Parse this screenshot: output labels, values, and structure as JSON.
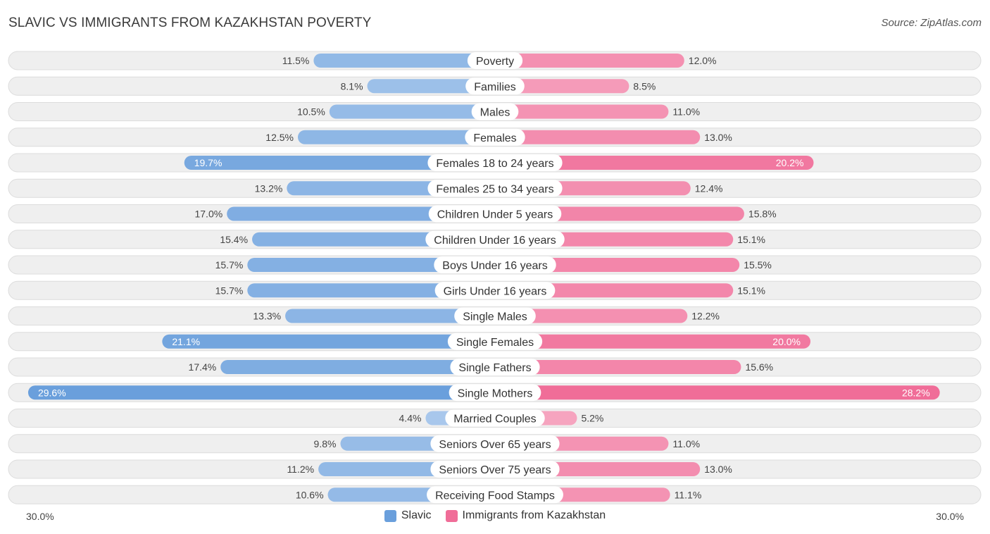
{
  "title": "SLAVIC VS IMMIGRANTS FROM KAZAKHSTAN POVERTY",
  "source": "Source: ZipAtlas.com",
  "colors": {
    "slavic_light": "#a9c8ec",
    "slavic_dark": "#6a9fdc",
    "kaz_light": "#f6a8c2",
    "kaz_dark": "#f06d98"
  },
  "chart_data": {
    "type": "bar",
    "orientation": "diverging-horizontal",
    "title": "SLAVIC VS IMMIGRANTS FROM KAZAKHSTAN POVERTY",
    "xlim": [
      -30.0,
      30.0
    ],
    "axis_left_label": "30.0%",
    "axis_right_label": "30.0%",
    "categories": [
      "Poverty",
      "Families",
      "Males",
      "Females",
      "Females 18 to 24 years",
      "Females 25 to 34 years",
      "Children Under 5 years",
      "Children Under 16 years",
      "Boys Under 16 years",
      "Girls Under 16 years",
      "Single Males",
      "Single Females",
      "Single Fathers",
      "Single Mothers",
      "Married Couples",
      "Seniors Over 65 years",
      "Seniors Over 75 years",
      "Receiving Food Stamps"
    ],
    "series": [
      {
        "name": "Slavic",
        "values": [
          11.5,
          8.1,
          10.5,
          12.5,
          19.7,
          13.2,
          17.0,
          15.4,
          15.7,
          15.7,
          13.3,
          21.1,
          17.4,
          29.6,
          4.4,
          9.8,
          11.2,
          10.6
        ],
        "labels": [
          "11.5%",
          "8.1%",
          "10.5%",
          "12.5%",
          "19.7%",
          "13.2%",
          "17.0%",
          "15.4%",
          "15.7%",
          "15.7%",
          "13.3%",
          "21.1%",
          "17.4%",
          "29.6%",
          "4.4%",
          "9.8%",
          "11.2%",
          "10.6%"
        ]
      },
      {
        "name": "Immigrants from Kazakhstan",
        "values": [
          12.0,
          8.5,
          11.0,
          13.0,
          20.2,
          12.4,
          15.8,
          15.1,
          15.5,
          15.1,
          12.2,
          20.0,
          15.6,
          28.2,
          5.2,
          11.0,
          13.0,
          11.1
        ],
        "labels": [
          "12.0%",
          "8.5%",
          "11.0%",
          "13.0%",
          "20.2%",
          "12.4%",
          "15.8%",
          "15.1%",
          "15.5%",
          "15.1%",
          "12.2%",
          "20.0%",
          "15.6%",
          "28.2%",
          "5.2%",
          "11.0%",
          "13.0%",
          "11.1%"
        ]
      }
    ],
    "legend": [
      "Slavic",
      "Immigrants from Kazakhstan"
    ],
    "legend_position": "bottom-center"
  }
}
